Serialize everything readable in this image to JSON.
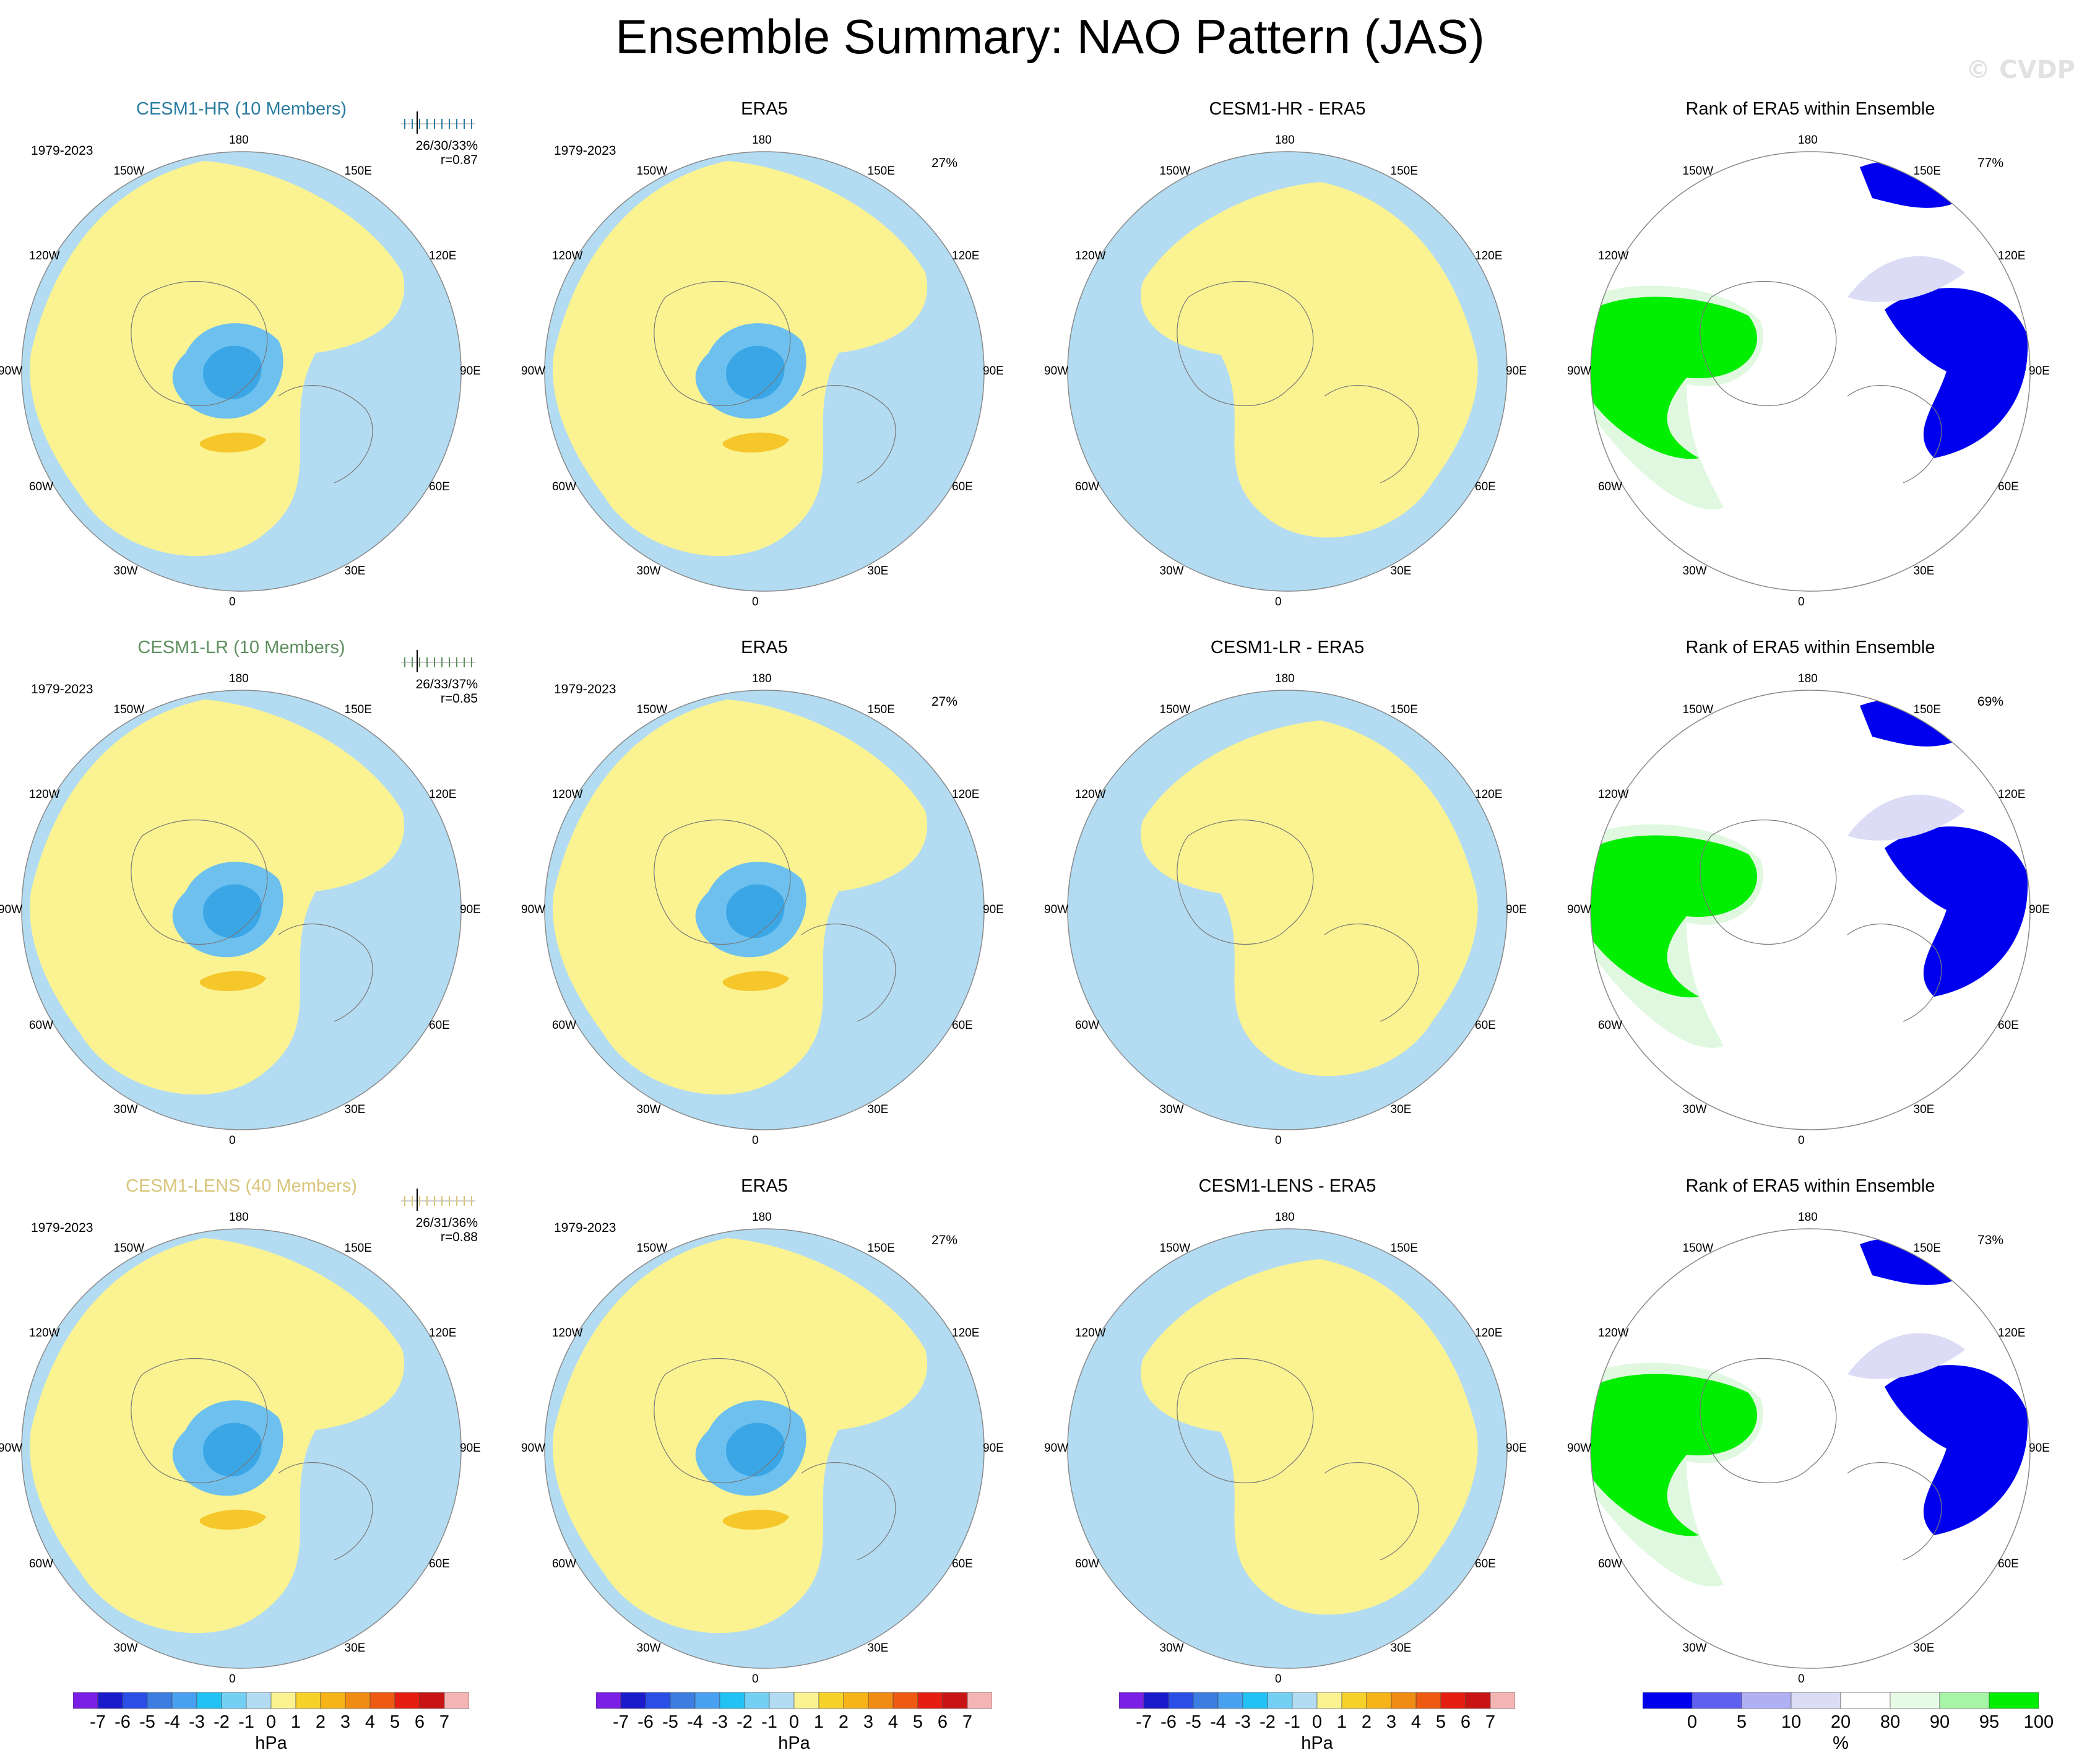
{
  "title": "Ensemble Summary: NAO Pattern (JAS)",
  "watermark": "© CVDP",
  "colors": {
    "blue_light": "#b3dcf2",
    "yellow_light": "#fbf392",
    "blue_mid": "#6ec1ef",
    "blue_dark": "#3aa6e6",
    "yellow_dark": "#f6c72b",
    "rank_blue": "#0000ee",
    "rank_green": "#00ee00",
    "rank_lightgreen": "#dff8df",
    "rank_lightblue": "#dcdcf6"
  },
  "lon_labels": [
    "180",
    "150E",
    "120E",
    "90E",
    "60E",
    "30E",
    "0",
    "30W",
    "60W",
    "90W",
    "120W",
    "150W"
  ],
  "rows": [
    {
      "model": {
        "title": "CESM1-HR (10 Members)",
        "color": "#2a7ba0",
        "period": "1979-2023",
        "stats1": "26/30/33%",
        "stats2": "r=0.87"
      },
      "obs": {
        "title": "ERA5",
        "period": "1979-2023",
        "pct": "27%"
      },
      "diff": {
        "title": "CESM1-HR - ERA5"
      },
      "rank": {
        "title": "Rank of ERA5 within Ensemble",
        "pct": "77%"
      }
    },
    {
      "model": {
        "title": "CESM1-LR (10 Members)",
        "color": "#5f8f5f",
        "period": "1979-2023",
        "stats1": "26/33/37%",
        "stats2": "r=0.85"
      },
      "obs": {
        "title": "ERA5",
        "period": "1979-2023",
        "pct": "27%"
      },
      "diff": {
        "title": "CESM1-LR - ERA5"
      },
      "rank": {
        "title": "Rank of ERA5 within Ensemble",
        "pct": "69%"
      }
    },
    {
      "model": {
        "title": "CESM1-LENS (40 Members)",
        "color": "#d8c57a",
        "period": "1979-2023",
        "stats1": "26/31/36%",
        "stats2": "r=0.88"
      },
      "obs": {
        "title": "ERA5",
        "period": "1979-2023",
        "pct": "27%"
      },
      "diff": {
        "title": "CESM1-LENS - ERA5"
      },
      "rank": {
        "title": "Rank of ERA5 within Ensemble",
        "pct": "73%"
      }
    }
  ],
  "chart_data": [
    {
      "type": "heatmap",
      "name": "hPa colorbar",
      "units": "hPa",
      "levels": [
        -7,
        -6,
        -5,
        -4,
        -3,
        -2,
        -1,
        0,
        1,
        2,
        3,
        4,
        5,
        6,
        7
      ],
      "tick_labels": [
        "-7",
        "-6",
        "-5",
        "-4",
        "-3",
        "-2",
        "-1",
        "0",
        "1",
        "2",
        "3",
        "4",
        "5",
        "6",
        "7"
      ],
      "colors": [
        "#7b1fe6",
        "#1b1bcc",
        "#2a4ee6",
        "#3b7de0",
        "#4aa0f0",
        "#22c2f5",
        "#74cff4",
        "#b3dcf2",
        "#fbf392",
        "#f6d12a",
        "#f6b418",
        "#f08c14",
        "#ee5a12",
        "#e61e12",
        "#c81414",
        "#f5b4b4"
      ]
    },
    {
      "type": "heatmap",
      "name": "rank colorbar",
      "units": "%",
      "tick_labels": [
        "0",
        "5",
        "10",
        "20",
        "80",
        "90",
        "95",
        "100"
      ],
      "colors": [
        "#0000ee",
        "#6060f0",
        "#b0b0f4",
        "#dcdcf6",
        "#ffffff",
        "#e6fae6",
        "#a6f5a6",
        "#00ee00"
      ]
    }
  ]
}
